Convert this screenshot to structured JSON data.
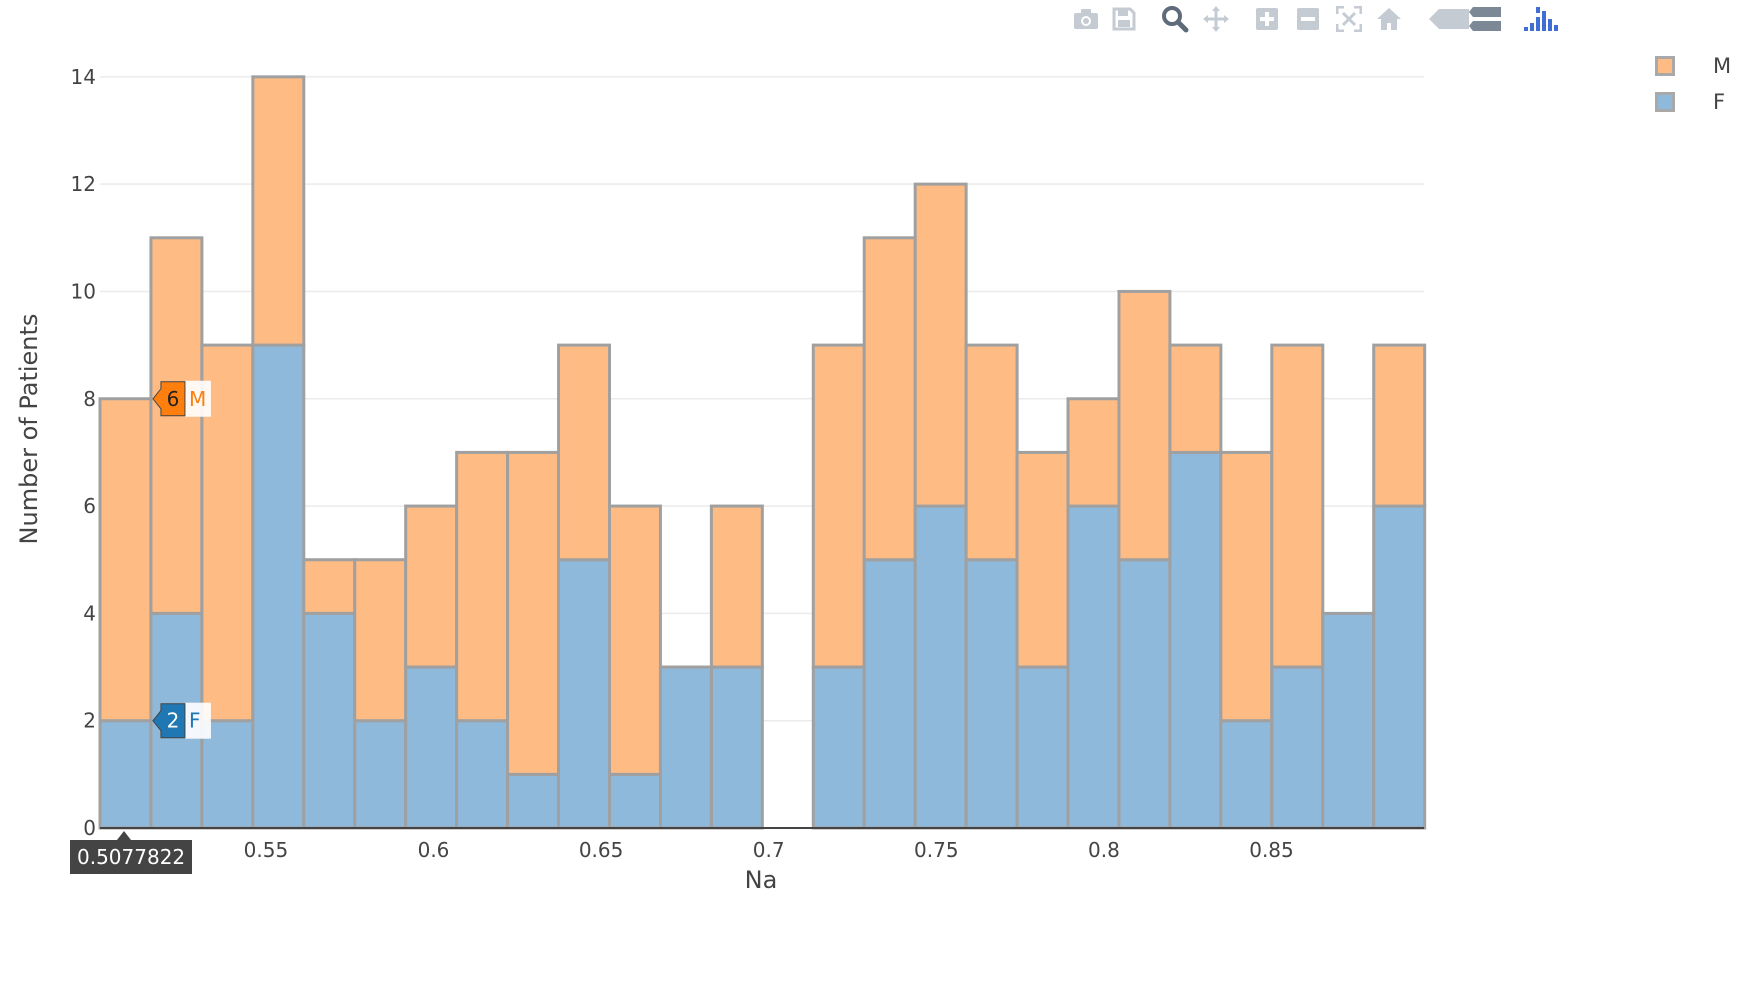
{
  "modebar": {
    "icons": [
      "camera-icon",
      "save-icon",
      "zoom-icon",
      "pan-icon",
      "zoom-in-icon",
      "zoom-out-icon",
      "autoscale-icon",
      "home-icon",
      "hover-closest-icon",
      "hover-compare-icon",
      "plotly-logo-icon"
    ]
  },
  "legend": [
    {
      "name": "M",
      "color": "#ffbb84"
    },
    {
      "name": "F",
      "color": "#8fb9da"
    }
  ],
  "hover": {
    "x_label": "0.5077822",
    "labels": [
      {
        "series": "M",
        "value": "6",
        "name": "M",
        "y": 8,
        "color": "#ff7f0e"
      },
      {
        "series": "F",
        "value": "2",
        "name": "F",
        "y": 2,
        "color": "#1f77b4"
      }
    ]
  },
  "chart_data": {
    "type": "bar",
    "barmode": "stack",
    "xlabel": "Na",
    "ylabel": "Number of Patients",
    "xlim": [
      0.5005,
      0.8955
    ],
    "ylim": [
      0,
      14.5
    ],
    "x_ticks": [
      0.55,
      0.6,
      0.65,
      0.7,
      0.75,
      0.8,
      0.85
    ],
    "x_tick_labels": [
      "0.55",
      "0.6",
      "0.65",
      "0.7",
      "0.75",
      "0.8",
      "0.85"
    ],
    "y_ticks": [
      0,
      2,
      4,
      6,
      8,
      10,
      12,
      14
    ],
    "y_tick_labels": [
      "0",
      "2",
      "4",
      "6",
      "8",
      "10",
      "12",
      "14"
    ],
    "grid": true,
    "legend_position": "top-right",
    "bin_start": 0.5005,
    "bin_width": 0.0152,
    "series": [
      {
        "name": "F",
        "color": "#1f77b4",
        "values": [
          2,
          4,
          2,
          9,
          4,
          2,
          3,
          2,
          1,
          5,
          1,
          3,
          3,
          0,
          3,
          5,
          6,
          5,
          3,
          6,
          5,
          7,
          2,
          3,
          4,
          6
        ]
      },
      {
        "name": "M",
        "color": "#ff7f0e",
        "values": [
          6,
          7,
          7,
          5,
          1,
          3,
          3,
          5,
          6,
          4,
          5,
          0,
          3,
          0,
          6,
          6,
          6,
          4,
          4,
          2,
          5,
          2,
          5,
          6,
          0,
          3
        ]
      }
    ]
  }
}
